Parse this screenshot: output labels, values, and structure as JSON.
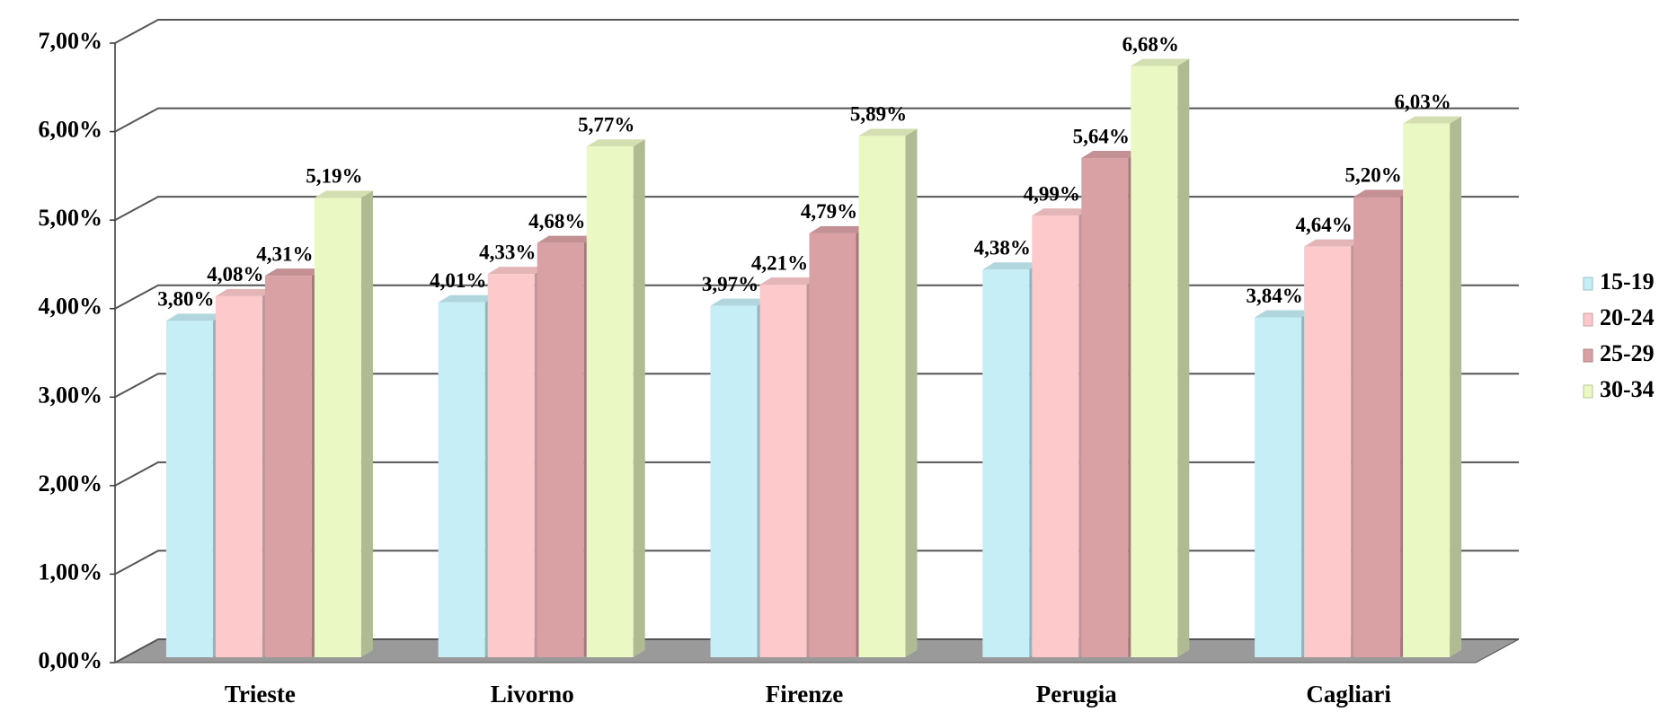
{
  "chart_data": {
    "type": "bar3d",
    "categories": [
      "Trieste",
      "Livorno",
      "Firenze",
      "Perugia",
      "Cagliari"
    ],
    "series": [
      {
        "name": "15-19",
        "color": "#c6eef7",
        "values": [
          3.8,
          4.01,
          3.97,
          4.38,
          3.84
        ],
        "value_labels": [
          "3,80%",
          "4,01%",
          "3,97%",
          "4,38%",
          "3,84%"
        ]
      },
      {
        "name": "20-24",
        "color": "#fdc9cb",
        "values": [
          4.08,
          4.33,
          4.21,
          4.99,
          4.64
        ],
        "value_labels": [
          "4,08%",
          "4,33%",
          "4,21%",
          "4,99%",
          "4,64%"
        ]
      },
      {
        "name": "25-29",
        "color": "#d9a1a4",
        "values": [
          4.31,
          4.68,
          4.79,
          5.64,
          5.2
        ],
        "value_labels": [
          "4,31%",
          "4,68%",
          "4,79%",
          "5,64%",
          "5,20%"
        ]
      },
      {
        "name": "30-34",
        "color": "#eaf8c4",
        "values": [
          5.19,
          5.77,
          5.89,
          6.68,
          6.03
        ],
        "value_labels": [
          "5,19%",
          "5,77%",
          "5,89%",
          "6,68%",
          "6,03%"
        ]
      }
    ],
    "ylim": [
      0,
      7
    ],
    "yticks": [
      {
        "value": 0,
        "label": "0,00%"
      },
      {
        "value": 1,
        "label": "1,00%"
      },
      {
        "value": 2,
        "label": "2,00%"
      },
      {
        "value": 3,
        "label": "3,00%"
      },
      {
        "value": 4,
        "label": "4,00%"
      },
      {
        "value": 5,
        "label": "5,00%"
      },
      {
        "value": 6,
        "label": "6,00%"
      },
      {
        "value": 7,
        "label": "7,00%"
      }
    ],
    "grid": true,
    "legend": "right"
  }
}
